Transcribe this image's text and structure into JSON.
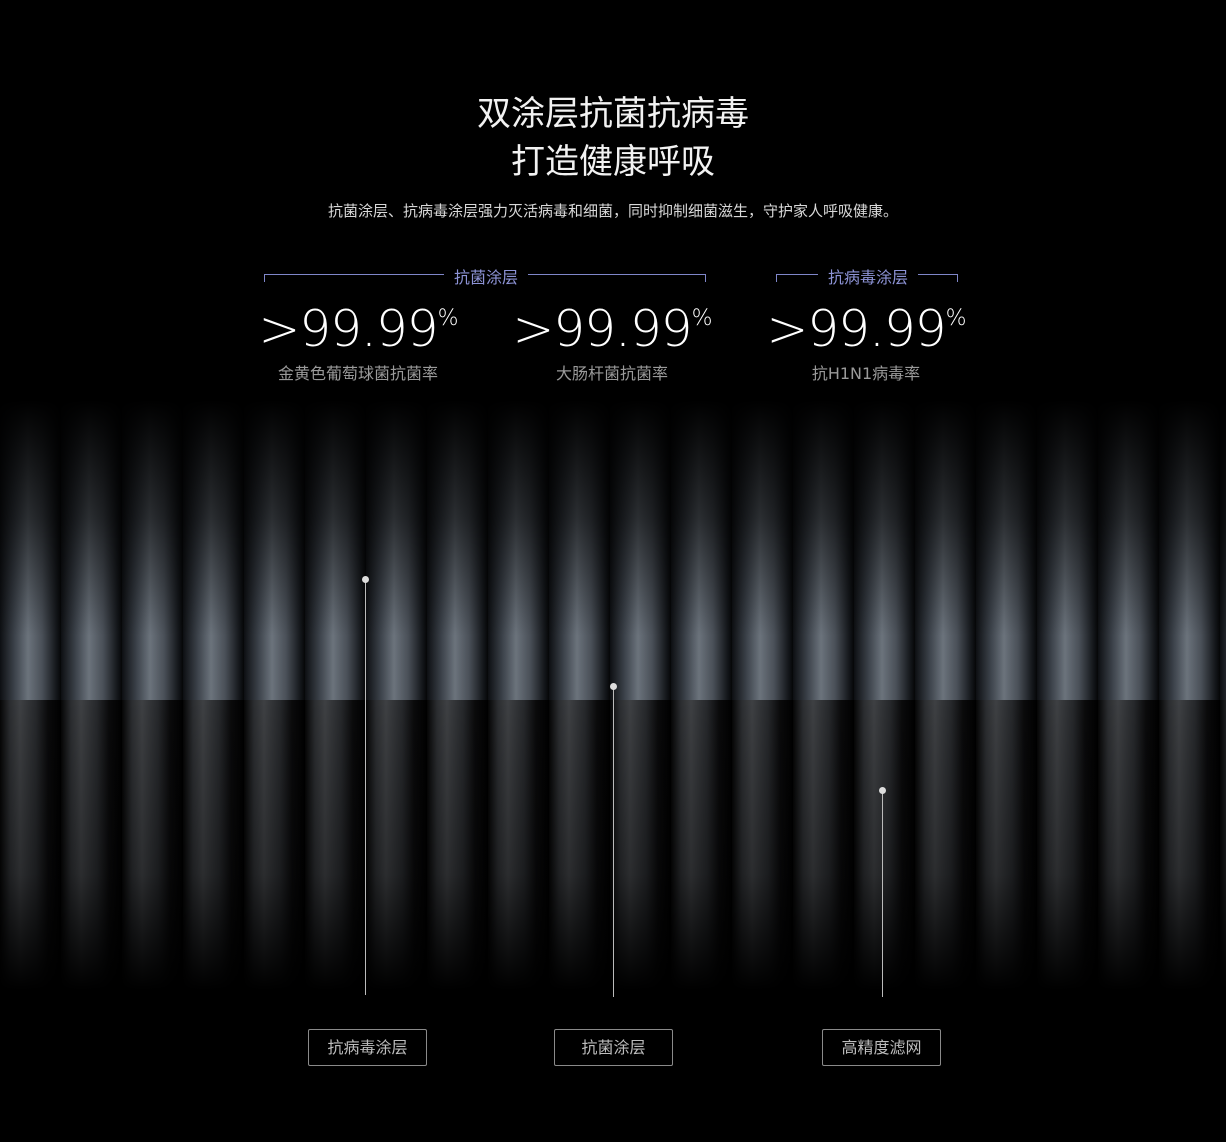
{
  "headline": {
    "line1": "双涂层抗菌抗病毒",
    "line2": "打造健康呼吸"
  },
  "subtitle": "抗菌涂层、抗病毒涂层强力灭活病毒和细菌，同时抑制细菌滋生，守护家人呼吸健康。",
  "groups": [
    {
      "label": "抗菌涂层"
    },
    {
      "label": "抗病毒涂层"
    }
  ],
  "stats": [
    {
      "prefix": ">",
      "value": "99.99",
      "unit": "%",
      "caption": "金黄色葡萄球菌抗菌率"
    },
    {
      "prefix": ">",
      "value": "99.99",
      "unit": "%",
      "caption": "大肠杆菌抗菌率"
    },
    {
      "prefix": ">",
      "value": "99.99",
      "unit": "%",
      "caption": "抗H1N1病毒率"
    }
  ],
  "layers": [
    {
      "label": "抗病毒涂层"
    },
    {
      "label": "抗菌涂层"
    },
    {
      "label": "高精度滤网"
    }
  ],
  "colors": {
    "accent": "#8d93d6",
    "background": "#000000"
  }
}
